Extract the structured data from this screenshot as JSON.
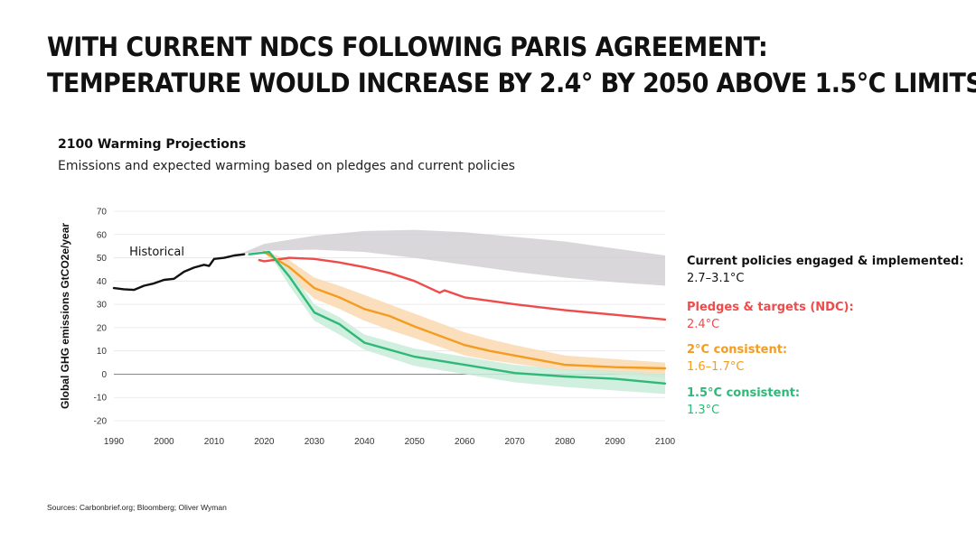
{
  "slide": {
    "title_line1": "WITH CURRENT NDCS FOLLOWING PARIS AGREEMENT:",
    "title_line2": "TEMPERATURE WOULD INCREASE BY 2.4° BY 2050 ABOVE 1.5°C LIMITS",
    "sources": "Sources: Carbonbrief.org; Bloomberg; Oliver Wyman"
  },
  "chart_data": {
    "type": "line",
    "title": "2100 Warming Projections",
    "subtitle": "Emissions and expected warming based on pledges and current policies",
    "ylabel": "Global GHG emissions GtCO2e/year",
    "xlabel": "",
    "xlim": [
      1990,
      2100
    ],
    "ylim": [
      -20,
      70
    ],
    "x_ticks": [
      1990,
      2000,
      2010,
      2020,
      2030,
      2040,
      2050,
      2060,
      2070,
      2080,
      2090,
      2100
    ],
    "y_ticks": [
      70,
      60,
      50,
      40,
      30,
      20,
      10,
      0,
      -10,
      -20
    ],
    "annotations": [
      {
        "text": "Historical",
        "x": 1992,
        "y": 51
      }
    ],
    "series": [
      {
        "name": "Historical",
        "color": "#111111",
        "x": [
          1990,
          1992,
          1994,
          1996,
          1998,
          2000,
          2002,
          2004,
          2006,
          2008,
          2009,
          2010,
          2012,
          2014,
          2016
        ],
        "y": [
          37,
          36.5,
          36.2,
          38,
          39,
          40.5,
          41,
          44,
          45.8,
          47,
          46.5,
          49.5,
          50,
          51,
          51.5
        ]
      },
      {
        "name": "Current policies engaged & implemented",
        "color": "#cfcdd1",
        "band_x": [
          2015,
          2020,
          2030,
          2040,
          2050,
          2060,
          2070,
          2080,
          2090,
          2100
        ],
        "band_upper": [
          51.5,
          56,
          59.5,
          61.5,
          62,
          61,
          59,
          57,
          54,
          51
        ],
        "band_lower": [
          51.5,
          53,
          53.5,
          52.5,
          50,
          47,
          44,
          41.5,
          39.5,
          38
        ]
      },
      {
        "name": "Pledges & targets (NDC)",
        "color": "#ef4b4b",
        "x": [
          2019,
          2020,
          2025,
          2030,
          2035,
          2040,
          2045,
          2050,
          2055,
          2056,
          2060,
          2065,
          2070,
          2080,
          2090,
          2100
        ],
        "y": [
          49,
          48.5,
          50,
          49.5,
          48,
          46,
          43.5,
          40,
          35,
          36,
          33,
          31.5,
          30,
          27.5,
          25.5,
          23.5
        ]
      },
      {
        "name": "2°C consistent",
        "color": "#f39c1f",
        "band_color": "#fad9b0",
        "x": [
          2020,
          2025,
          2030,
          2035,
          2040,
          2045,
          2050,
          2060,
          2065,
          2070,
          2080,
          2090,
          2100
        ],
        "y": [
          52.5,
          46,
          37,
          33,
          28,
          25,
          20.5,
          12.5,
          10,
          8,
          4,
          3,
          2.5
        ],
        "band_upper": [
          53,
          49,
          41.5,
          38,
          34,
          30,
          26,
          18,
          15,
          12.5,
          8,
          6.5,
          5
        ],
        "band_lower": [
          52,
          42,
          32.5,
          28,
          23,
          19,
          15.5,
          8,
          6,
          4.5,
          1.5,
          0,
          -1.5
        ]
      },
      {
        "name": "1.5°C consistent",
        "color": "#2fb877",
        "band_color": "#c8ecd9",
        "x": [
          2017,
          2021,
          2025,
          2030,
          2035,
          2040,
          2050,
          2060,
          2070,
          2080,
          2090,
          2100
        ],
        "y": [
          51.5,
          52.5,
          42,
          26.5,
          21.5,
          13.5,
          7.5,
          4,
          0.5,
          -1,
          -2,
          -4
        ],
        "band_upper": [
          52,
          53,
          45,
          30,
          24.5,
          17,
          11,
          7.5,
          4,
          2,
          1.5,
          0
        ],
        "band_lower": [
          51,
          52,
          38,
          23,
          17,
          10.5,
          3.5,
          0,
          -3.5,
          -5.5,
          -7,
          -8.5
        ]
      }
    ],
    "legend": [
      {
        "label": "Current policies engaged & implemented:",
        "value": "2.7–3.1°C",
        "color": "#111111",
        "value_color": "#111111"
      },
      {
        "label": "Pledges & targets (NDC):",
        "value": "2.4°C",
        "color": "#ef4b4b",
        "value_color": "#ef4b4b"
      },
      {
        "label": "2°C consistent:",
        "value": "1.6–1.7°C",
        "color": "#f39c1f",
        "value_color": "#f39c1f"
      },
      {
        "label": "1.5°C consistent:",
        "value": "1.3°C",
        "color": "#2fb877",
        "value_color": "#2fb877"
      }
    ]
  }
}
